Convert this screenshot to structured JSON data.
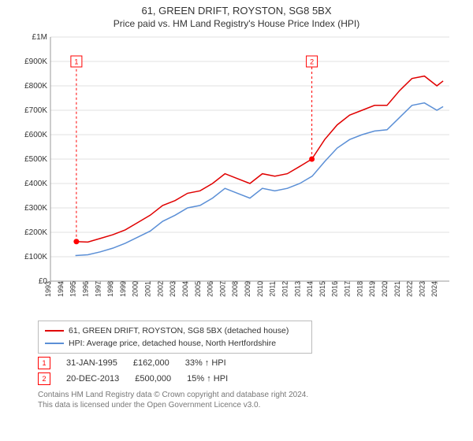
{
  "title": "61, GREEN DRIFT, ROYSTON, SG8 5BX",
  "subtitle": "Price paid vs. HM Land Registry's House Price Index (HPI)",
  "chart": {
    "xlim": [
      1993,
      2025
    ],
    "ylim": [
      0,
      1000000
    ],
    "yticks": [
      {
        "v": 0,
        "label": "£0"
      },
      {
        "v": 100000,
        "label": "£100K"
      },
      {
        "v": 200000,
        "label": "£200K"
      },
      {
        "v": 300000,
        "label": "£300K"
      },
      {
        "v": 400000,
        "label": "£400K"
      },
      {
        "v": 500000,
        "label": "£500K"
      },
      {
        "v": 600000,
        "label": "£600K"
      },
      {
        "v": 700000,
        "label": "£700K"
      },
      {
        "v": 800000,
        "label": "£800K"
      },
      {
        "v": 900000,
        "label": "£900K"
      },
      {
        "v": 1000000,
        "label": "£1M"
      }
    ],
    "xticks": [
      1993,
      1994,
      1995,
      1996,
      1997,
      1998,
      1999,
      2000,
      2001,
      2002,
      2003,
      2004,
      2005,
      2006,
      2007,
      2008,
      2009,
      2010,
      2011,
      2012,
      2013,
      2014,
      2015,
      2016,
      2017,
      2018,
      2019,
      2020,
      2021,
      2022,
      2023,
      2024
    ],
    "background_color": "#ffffff",
    "grid_color": "#e0e0e0",
    "series": [
      {
        "name": "subject",
        "color": "#e00000",
        "points": [
          [
            1995,
            162000
          ],
          [
            1996,
            160000
          ],
          [
            1997,
            175000
          ],
          [
            1998,
            190000
          ],
          [
            1999,
            210000
          ],
          [
            2000,
            240000
          ],
          [
            2001,
            270000
          ],
          [
            2002,
            310000
          ],
          [
            2003,
            330000
          ],
          [
            2004,
            360000
          ],
          [
            2005,
            370000
          ],
          [
            2006,
            400000
          ],
          [
            2007,
            440000
          ],
          [
            2008,
            420000
          ],
          [
            2009,
            400000
          ],
          [
            2010,
            440000
          ],
          [
            2011,
            430000
          ],
          [
            2012,
            440000
          ],
          [
            2013,
            470000
          ],
          [
            2013.97,
            500000
          ],
          [
            2015,
            580000
          ],
          [
            2016,
            640000
          ],
          [
            2017,
            680000
          ],
          [
            2018,
            700000
          ],
          [
            2019,
            720000
          ],
          [
            2020,
            720000
          ],
          [
            2021,
            780000
          ],
          [
            2022,
            830000
          ],
          [
            2023,
            840000
          ],
          [
            2024,
            800000
          ],
          [
            2024.5,
            820000
          ]
        ]
      },
      {
        "name": "hpi",
        "color": "#5b8fd6",
        "points": [
          [
            1995,
            105000
          ],
          [
            1996,
            108000
          ],
          [
            1997,
            120000
          ],
          [
            1998,
            135000
          ],
          [
            1999,
            155000
          ],
          [
            2000,
            180000
          ],
          [
            2001,
            205000
          ],
          [
            2002,
            245000
          ],
          [
            2003,
            270000
          ],
          [
            2004,
            300000
          ],
          [
            2005,
            310000
          ],
          [
            2006,
            340000
          ],
          [
            2007,
            380000
          ],
          [
            2008,
            360000
          ],
          [
            2009,
            340000
          ],
          [
            2010,
            380000
          ],
          [
            2011,
            370000
          ],
          [
            2012,
            380000
          ],
          [
            2013,
            400000
          ],
          [
            2014,
            430000
          ],
          [
            2015,
            490000
          ],
          [
            2016,
            545000
          ],
          [
            2017,
            580000
          ],
          [
            2018,
            600000
          ],
          [
            2019,
            615000
          ],
          [
            2020,
            620000
          ],
          [
            2021,
            670000
          ],
          [
            2022,
            720000
          ],
          [
            2023,
            730000
          ],
          [
            2024,
            700000
          ],
          [
            2024.5,
            715000
          ]
        ]
      }
    ],
    "markers": [
      {
        "id": "1",
        "x": 1995.08,
        "y": 162000,
        "line_to_y": 900000,
        "box_y": 900000
      },
      {
        "id": "2",
        "x": 2013.97,
        "y": 500000,
        "line_to_y": 900000,
        "box_y": 900000
      }
    ]
  },
  "legend": [
    {
      "color": "#e00000",
      "text": "61, GREEN DRIFT, ROYSTON, SG8 5BX (detached house)"
    },
    {
      "color": "#5b8fd6",
      "text": "HPI: Average price, detached house, North Hertfordshire"
    }
  ],
  "transactions": [
    {
      "id": "1",
      "date": "31-JAN-1995",
      "price": "£162,000",
      "delta": "33% ↑ HPI"
    },
    {
      "id": "2",
      "date": "20-DEC-2013",
      "price": "£500,000",
      "delta": "15% ↑ HPI"
    }
  ],
  "footer_line1": "Contains HM Land Registry data © Crown copyright and database right 2024.",
  "footer_line2": "This data is licensed under the Open Government Licence v3.0."
}
